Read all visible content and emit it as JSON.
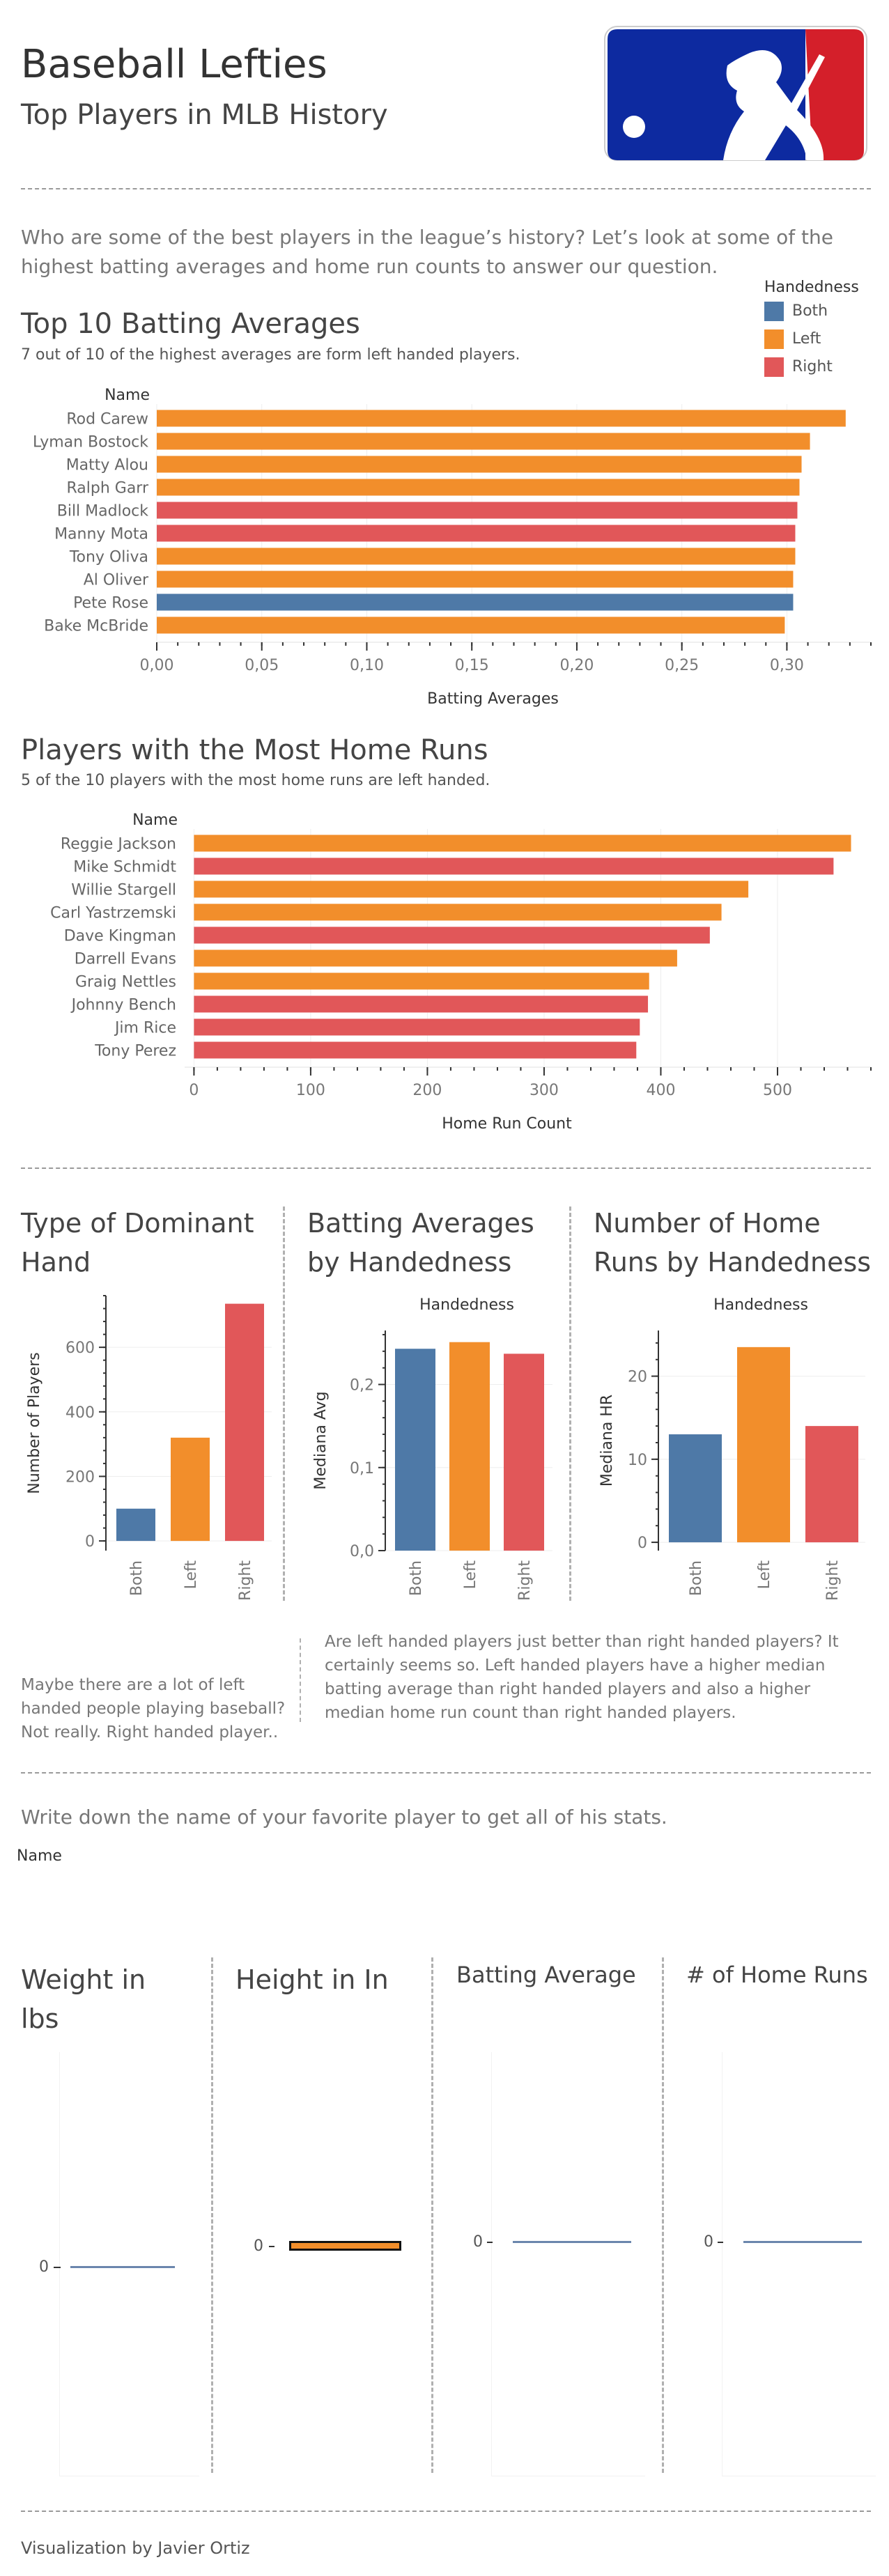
{
  "header": {
    "title": "Baseball Lefties",
    "subtitle": "Top Players in MLB History",
    "logo": "mlb-batter-logo"
  },
  "intro": "Who are some of the best players in the league’s history? Let’s look at some of the highest batting averages and home run counts to answer our question.",
  "colors": {
    "Both": "#4e79a7",
    "Left": "#f28e2b",
    "Right": "#e15759"
  },
  "legend": {
    "title": "Handedness",
    "items": [
      {
        "label": "Both"
      },
      {
        "label": "Left"
      },
      {
        "label": "Right"
      }
    ]
  },
  "batting": {
    "title": "Top 10 Batting Averages",
    "note": "7 out of 10 of the highest averages are form left handed players."
  },
  "homeruns": {
    "title": "Players with the Most Home Runs",
    "note": "5 of the 10 players with the most home runs are left handed."
  },
  "hand_panels": {
    "dominant_title": "Type of Dominant Hand",
    "avg_title": "Batting Averages by Handedness",
    "hr_title": "Number of Home Runs by Handedness",
    "legend_header": "Handedness"
  },
  "text_left": "Maybe there are a lot of left handed people playing baseball? Not really. Right handed player..",
  "text_right": "Are left handed players just better than right handed players? It certainly seems so. Left handed players have a higher median batting average than right handed players and also a higher median home run count than right handed players.",
  "lookup": {
    "prompt": "Write down the name of your favorite player to get all of his stats.",
    "field_label": "Name",
    "weight_title": "Weight in lbs",
    "height_title": "Height in In",
    "avg_title": "Batting Average",
    "hr_title": "# of Home Runs",
    "zero_label": "0"
  },
  "footer": "Visualization by Javier Ortiz",
  "chart_data": [
    {
      "id": "top-batting",
      "type": "bar",
      "orientation": "horizontal",
      "title": "Top 10 Batting Averages",
      "xlabel": "Batting Averages",
      "ylabel": "Name",
      "xlim": [
        0,
        0.34
      ],
      "ticks": [
        "0,00",
        "0,05",
        "0,10",
        "0,15",
        "0,20",
        "0,25",
        "0,30"
      ],
      "tick_values": [
        0,
        0.05,
        0.1,
        0.15,
        0.2,
        0.25,
        0.3
      ],
      "categories": [
        "Rod Carew",
        "Lyman Bostock",
        "Matty Alou",
        "Ralph Garr",
        "Bill Madlock",
        "Manny Mota",
        "Tony Oliva",
        "Al Oliver",
        "Pete Rose",
        "Bake McBride"
      ],
      "values": [
        0.328,
        0.311,
        0.307,
        0.306,
        0.305,
        0.304,
        0.304,
        0.303,
        0.303,
        0.299
      ],
      "hands": [
        "Left",
        "Left",
        "Left",
        "Left",
        "Right",
        "Right",
        "Left",
        "Left",
        "Both",
        "Left"
      ]
    },
    {
      "id": "top-homeruns",
      "type": "bar",
      "orientation": "horizontal",
      "title": "Players with the Most Home Runs",
      "xlabel": "Home Run Count",
      "ylabel": "Name",
      "xlim": [
        -8,
        580
      ],
      "ticks": [
        "0",
        "100",
        "200",
        "300",
        "400",
        "500"
      ],
      "tick_values": [
        0,
        100,
        200,
        300,
        400,
        500
      ],
      "categories": [
        "Reggie Jackson",
        "Mike Schmidt",
        "Willie Stargell",
        "Carl Yastrzemski",
        "Dave Kingman",
        "Darrell Evans",
        "Graig Nettles",
        "Johnny Bench",
        "Jim Rice",
        "Tony Perez"
      ],
      "values": [
        563,
        548,
        475,
        452,
        442,
        414,
        390,
        389,
        382,
        379
      ],
      "hands": [
        "Left",
        "Right",
        "Left",
        "Left",
        "Right",
        "Left",
        "Left",
        "Right",
        "Right",
        "Right"
      ]
    },
    {
      "id": "dominant-hand",
      "type": "bar",
      "title": "Type of Dominant Hand",
      "ylabel": "Number of Players",
      "ylim": [
        -30,
        760
      ],
      "ticks": [
        "0",
        "200",
        "400",
        "600"
      ],
      "tick_values": [
        0,
        200,
        400,
        600
      ],
      "categories": [
        "Both",
        "Left",
        "Right"
      ],
      "values": [
        100,
        320,
        735
      ]
    },
    {
      "id": "avg-by-hand",
      "type": "bar",
      "title": "Batting Averages by Handedness",
      "ylabel": "Mediana Avg",
      "ylim": [
        0,
        0.265
      ],
      "ticks": [
        "0,0",
        "0,1",
        "0,2"
      ],
      "tick_values": [
        0,
        0.1,
        0.2
      ],
      "categories": [
        "Both",
        "Left",
        "Right"
      ],
      "values": [
        0.243,
        0.251,
        0.237
      ]
    },
    {
      "id": "hr-by-hand",
      "type": "bar",
      "title": "Number of Home Runs by Handedness",
      "ylabel": "Mediana HR",
      "ylim": [
        -1,
        25.5
      ],
      "ticks": [
        "0",
        "10",
        "20"
      ],
      "tick_values": [
        0,
        10,
        20
      ],
      "categories": [
        "Both",
        "Left",
        "Right"
      ],
      "values": [
        13,
        23.5,
        14
      ]
    }
  ]
}
